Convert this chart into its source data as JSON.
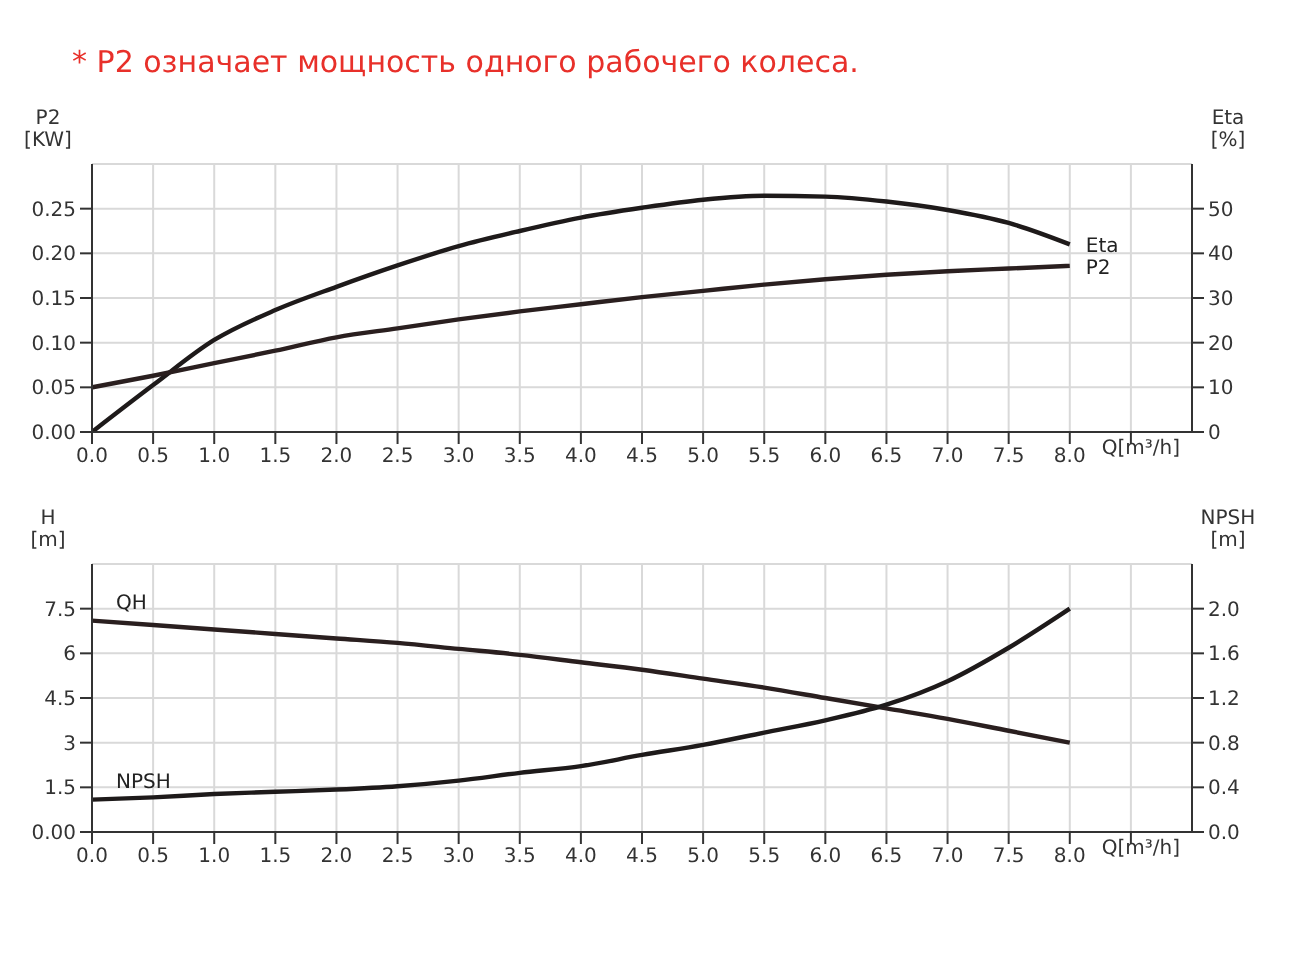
{
  "chart_data": [
    {
      "type": "line",
      "title": "* P2 означает мощность одного рабочего колеса.",
      "ylabel": "P2 [KW]",
      "y2label": "Eta [%]",
      "xlabel": "Q[m³/h]",
      "x": [
        0,
        0.5,
        1,
        1.5,
        2,
        2.5,
        3,
        3.5,
        4,
        4.5,
        5,
        5.5,
        6,
        6.5,
        7,
        7.5,
        8
      ],
      "series": [
        {
          "name": "Eta",
          "color": "#1e1a1a",
          "axis": "y2",
          "values": [
            0,
            10.5,
            20.6,
            27.3,
            32.5,
            37.3,
            41.6,
            45,
            48,
            50.2,
            52,
            52.9,
            52.7,
            51.6,
            49.7,
            46.8,
            42
          ]
        },
        {
          "name": "P2",
          "color": "#2a1f1f",
          "values": [
            0.05,
            0.063,
            0.077,
            0.091,
            0.106,
            0.116,
            0.126,
            0.135,
            0.143,
            0.151,
            0.158,
            0.165,
            0.171,
            0.176,
            0.18,
            0.183,
            0.186
          ]
        }
      ],
      "xlim": [
        0,
        9
      ],
      "xticks": [
        {
          "value": 0,
          "label": "0.0"
        },
        0.5,
        {
          "value": 1,
          "label": "1.0"
        },
        1.5,
        {
          "value": 2,
          "label": "2.0"
        },
        2.5,
        {
          "value": 3,
          "label": "3.0"
        },
        3.5,
        {
          "value": 4,
          "label": "4.0"
        },
        4.5,
        {
          "value": 5,
          "label": "5.0"
        },
        5.5,
        {
          "value": 6,
          "label": "6.0"
        },
        6.5,
        {
          "value": 7,
          "label": "7.0"
        },
        7.5,
        {
          "value": 8,
          "label": "8.0"
        },
        {
          "value": 8.5,
          "label": null
        }
      ],
      "ylim": [
        0,
        0.3
      ],
      "yticks": [
        {
          "value": 0,
          "label": "0.00"
        },
        0.05,
        {
          "value": 0.1,
          "label": "0.10"
        },
        0.15,
        {
          "value": 0.2,
          "label": "0.20"
        },
        0.25
      ],
      "y2lim": [
        0,
        60
      ],
      "y2ticks": [
        0,
        10,
        20,
        30,
        40,
        50
      ],
      "grid": true,
      "legend": false,
      "marker": "none"
    },
    {
      "type": "line",
      "ylabel": "H [m]",
      "y2label": "NPSH [m]",
      "xlabel": "Q[m³/h]",
      "x": [
        0,
        0.5,
        1,
        1.5,
        2,
        2.5,
        3,
        3.5,
        4,
        4.5,
        5,
        5.5,
        6,
        6.5,
        7,
        7.5,
        8
      ],
      "series": [
        {
          "name": "QH",
          "color": "#2a1f1f",
          "values": [
            7.1,
            6.95,
            6.8,
            6.65,
            6.5,
            6.35,
            6.15,
            5.95,
            5.7,
            5.45,
            5.15,
            4.85,
            4.5,
            4.15,
            3.8,
            3.4,
            3.0
          ]
        },
        {
          "name": "NPSH",
          "color": "#1e1a1a",
          "axis": "y2",
          "values": [
            0.29,
            0.31,
            0.34,
            0.36,
            0.38,
            0.41,
            0.46,
            0.53,
            0.59,
            0.69,
            0.78,
            0.89,
            1.0,
            1.14,
            1.35,
            1.65,
            2.0
          ]
        }
      ],
      "xlim": [
        0,
        9
      ],
      "xticks": [
        {
          "value": 0,
          "label": "0.0"
        },
        0.5,
        {
          "value": 1,
          "label": "1.0"
        },
        1.5,
        {
          "value": 2,
          "label": "2.0"
        },
        2.5,
        {
          "value": 3,
          "label": "3.0"
        },
        3.5,
        {
          "value": 4,
          "label": "4.0"
        },
        4.5,
        {
          "value": 5,
          "label": "5.0"
        },
        5.5,
        {
          "value": 6,
          "label": "6.0"
        },
        6.5,
        {
          "value": 7,
          "label": "7.0"
        },
        7.5,
        {
          "value": 8,
          "label": "8.0"
        },
        {
          "value": 8.5,
          "label": null
        }
      ],
      "ylim": [
        0,
        9
      ],
      "yticks": [
        {
          "value": 0,
          "label": "0.00"
        },
        1.5,
        3,
        4.5,
        6,
        7.5
      ],
      "y2lim": [
        0,
        2.4
      ],
      "y2ticks": [
        {
          "value": 0,
          "label": "0.0"
        },
        0.4,
        0.8,
        1.2,
        1.6,
        {
          "value": 2,
          "label": "2.0"
        }
      ],
      "grid": true,
      "legend": false,
      "marker": "none"
    }
  ]
}
